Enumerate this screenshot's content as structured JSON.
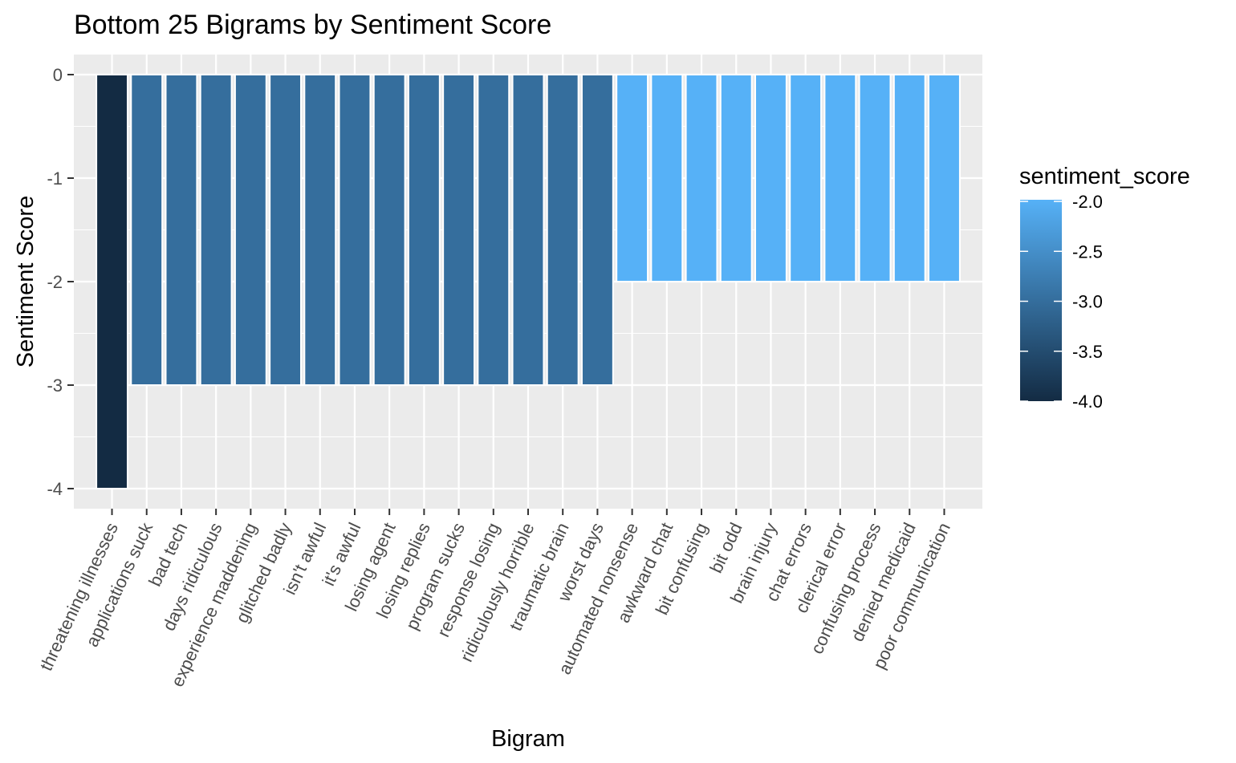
{
  "chart_data": {
    "type": "bar",
    "title": "Bottom 25 Bigrams by Sentiment Score",
    "xlabel": "Bigram",
    "ylabel": "Sentiment Score",
    "ylim": [
      -4,
      0
    ],
    "y_ticks": [
      0,
      -1,
      -2,
      -3,
      -4
    ],
    "y_tick_labels": [
      "0",
      "-1",
      "-2",
      "-3",
      "-4"
    ],
    "categories": [
      "threatening illnesses",
      "applications suck",
      "bad tech",
      "days ridiculous",
      "experience maddening",
      "glitched badly",
      "isn't awful",
      "it's awful",
      "losing agent",
      "losing replies",
      "program sucks",
      "response losing",
      "ridiculously horrible",
      "traumatic brain",
      "worst days",
      "automated nonsense",
      "awkward chat",
      "bit confusing",
      "bit odd",
      "brain injury",
      "chat errors",
      "clerical error",
      "confusing process",
      "denied medicaid",
      "poor communication"
    ],
    "values": [
      -4,
      -3,
      -3,
      -3,
      -3,
      -3,
      -3,
      -3,
      -3,
      -3,
      -3,
      -3,
      -3,
      -3,
      -3,
      -2,
      -2,
      -2,
      -2,
      -2,
      -2,
      -2,
      -2,
      -2,
      -2
    ],
    "grid": true,
    "legend": {
      "title": "sentiment_score",
      "position": "right",
      "type": "colorbar",
      "range": [
        -4,
        -2
      ],
      "ticks": [
        -2.0,
        -2.5,
        -3.0,
        -3.5,
        -4.0
      ],
      "tick_labels": [
        "-2.0",
        "-2.5",
        "-3.0",
        "-3.5",
        "-4.0"
      ],
      "low_color": "#132b43",
      "high_color": "#56b1f7"
    },
    "colors": {
      "panel_background": "#ebebeb",
      "grid_major": "#ffffff",
      "bar_outline": "#ffffff"
    }
  }
}
